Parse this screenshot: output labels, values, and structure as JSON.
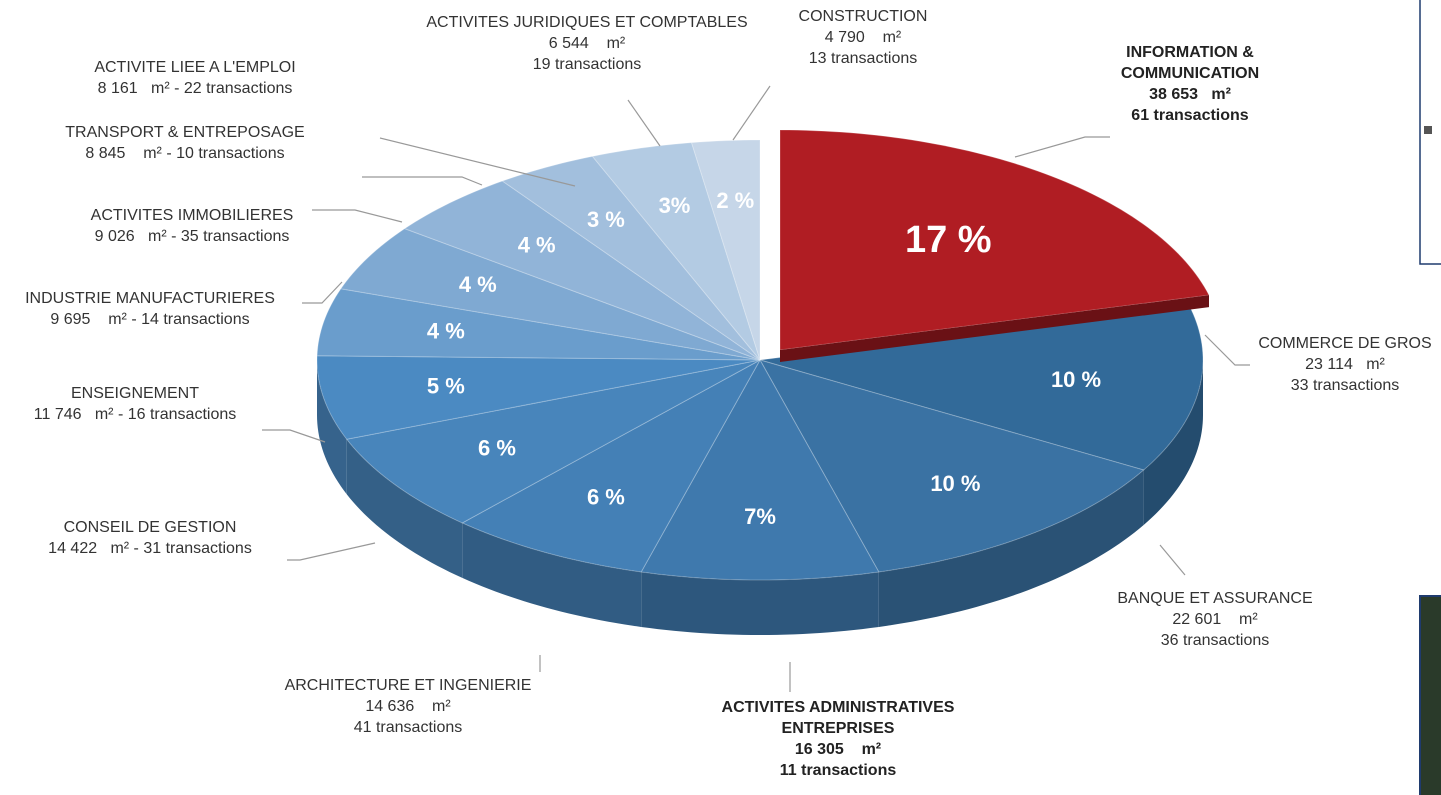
{
  "chart_data": {
    "type": "pie3d",
    "categories": [
      "INFORMATION & COMMUNICATION",
      "COMMERCE DE GROS",
      "BANQUE ET ASSURANCE",
      "ACTIVITES ADMINISTRATIVES ENTREPRISES",
      "ARCHITECTURE ET INGENIERIE",
      "CONSEIL DE GESTION",
      "ENSEIGNEMENT",
      "INDUSTRIE MANUFACTURIERES",
      "ACTIVITES IMMOBILIERES",
      "TRANSPORT & ENTREPOSAGE",
      "ACTIVITE LIEE A L'EMPLOI",
      "ACTIVITES JURIDIQUES ET COMPTABLES",
      "CONSTRUCTION"
    ],
    "values": [
      17,
      10,
      10,
      7,
      6,
      6,
      5,
      4,
      4,
      4,
      3,
      3,
      2
    ],
    "value_labels": [
      "17 %",
      "10 %",
      "10 %",
      "7%",
      "6 %",
      "6 %",
      "5 %",
      "4 %",
      "4 %",
      "4 %",
      "3 %",
      "3%",
      "2 %"
    ],
    "details": [
      [
        "38 653   m²",
        "61 transactions"
      ],
      [
        "23 114   m²",
        "33 transactions"
      ],
      [
        "22 601    m²",
        "36 transactions"
      ],
      [
        "16 305    m²",
        "11 transactions"
      ],
      [
        "14 636    m²",
        "41 transactions"
      ],
      [
        "14 422   m² - 31 transactions"
      ],
      [
        "11 746   m² - 16 transactions"
      ],
      [
        "9 695    m² - 14 transactions"
      ],
      [
        "9 026   m² - 35 transactions"
      ],
      [
        "8 845    m² - 10 transactions"
      ],
      [
        "8 161   m² - 22 transactions"
      ],
      [
        "6 544    m²",
        "19 transactions"
      ],
      [
        "4 790    m²",
        "13 transactions"
      ]
    ],
    "emphasis": [
      true,
      false,
      false,
      true,
      false,
      false,
      false,
      false,
      false,
      false,
      false,
      false,
      false
    ],
    "colors": [
      "#b01d23",
      "#326a99",
      "#3a72a3",
      "#3f79ad",
      "#4480b6",
      "#4885bb",
      "#4b8ac2",
      "#6a9dcc",
      "#7fa9d2",
      "#91b4d8",
      "#a2bfdd",
      "#b3cbe3",
      "#c6d6e8"
    ]
  }
}
